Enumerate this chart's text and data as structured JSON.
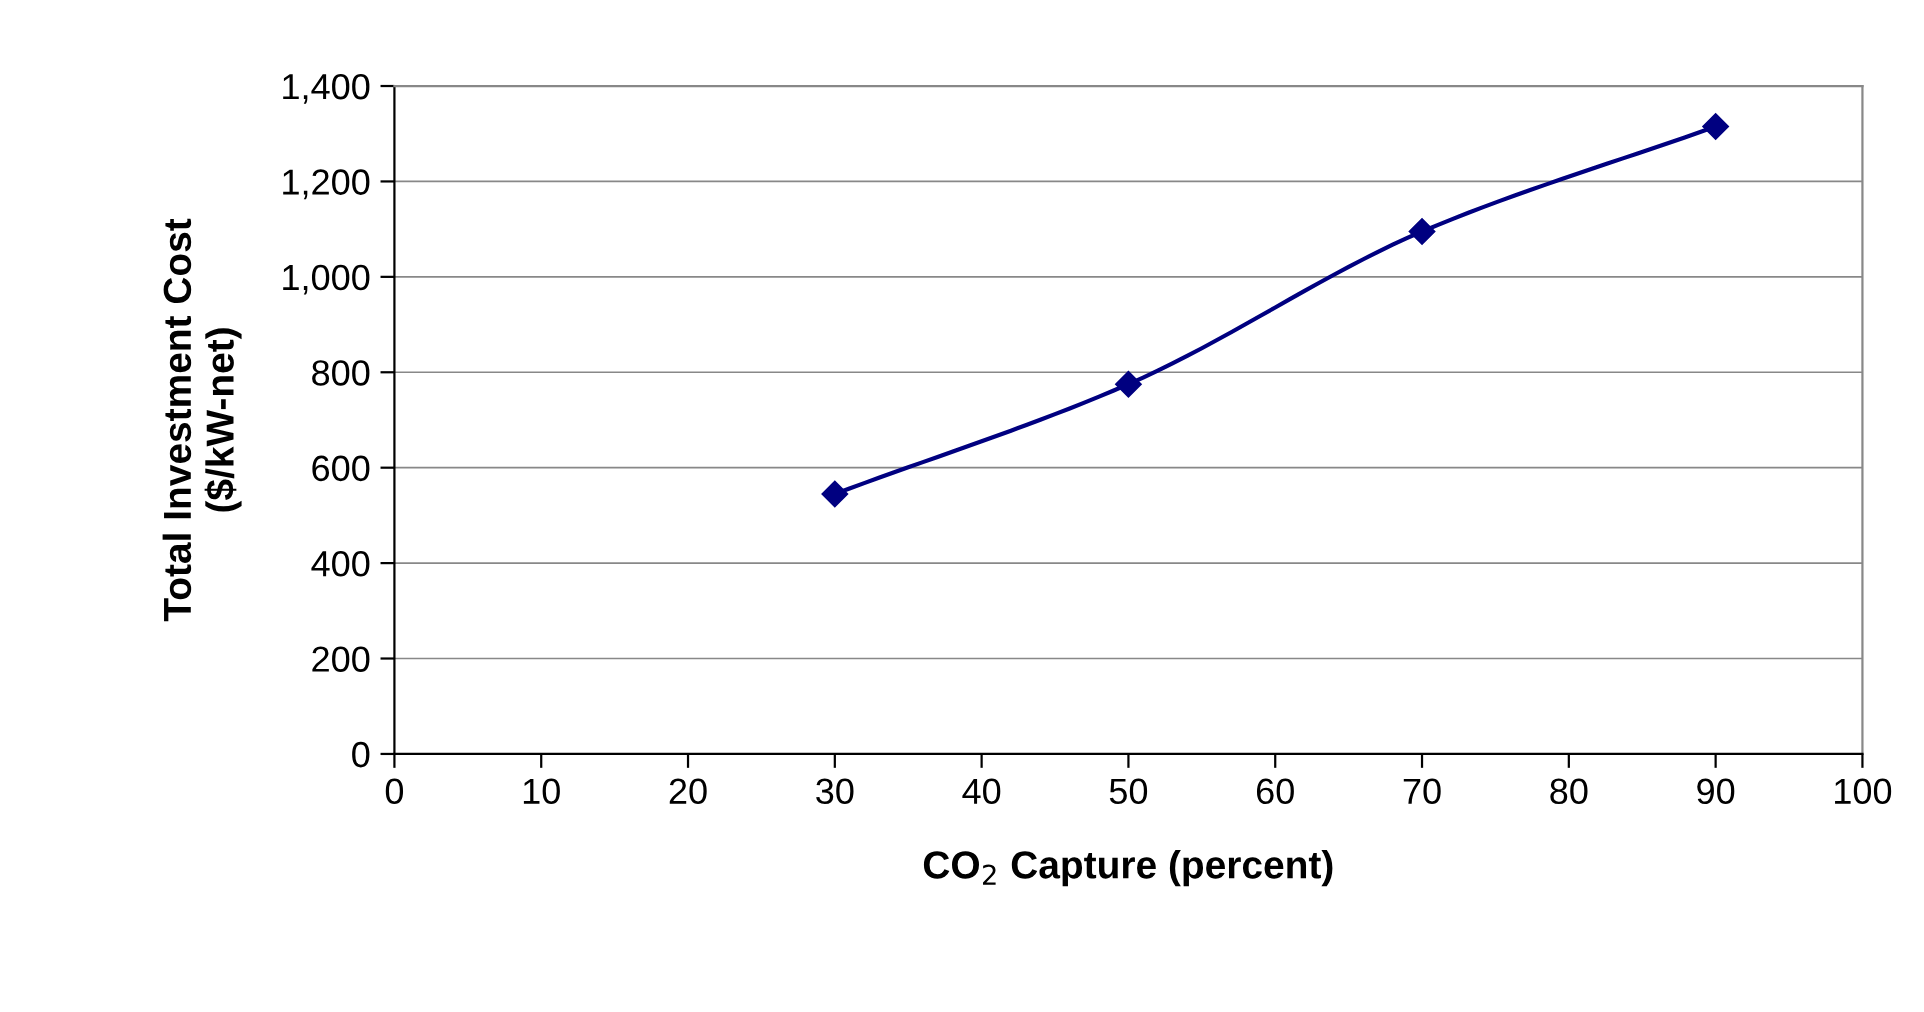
{
  "chart_data": {
    "type": "line",
    "xlabel": "CO$_{2}$ Capture (percent)",
    "ylabel": "Total Investment Cost\n($/kW-net)",
    "x": [
      30,
      50,
      70,
      90
    ],
    "series": [
      {
        "color": "#000080",
        "values": [
          545,
          775,
          1095,
          1315
        ]
      }
    ],
    "xlim": [
      0,
      100
    ],
    "xticks": [
      0,
      10,
      20,
      30,
      40,
      50,
      60,
      70,
      80,
      90,
      100
    ],
    "ylim": [
      0,
      1400
    ],
    "yticks": [
      0,
      {
        "value": 200,
        "label": "200"
      },
      {
        "value": 400,
        "label": "400"
      },
      {
        "value": 600,
        "label": "600"
      },
      {
        "value": 800,
        "label": "800"
      },
      {
        "value": 1000,
        "label": "1,000"
      },
      {
        "value": 1200,
        "label": "1,200"
      },
      {
        "value": 1400,
        "label": "1,400"
      }
    ],
    "grid": "y",
    "marker": "diamond",
    "line_style": "solid",
    "legend": false
  }
}
